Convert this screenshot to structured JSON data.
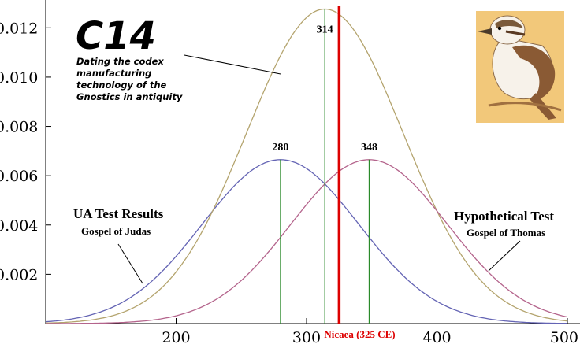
{
  "chart_data": {
    "type": "line",
    "xlim": [
      100,
      500
    ],
    "ylim": [
      0,
      0.013
    ],
    "x_ticks": [
      "200",
      "300",
      "400",
      "500"
    ],
    "y_ticks": [
      "0.002",
      "0.004",
      "0.006",
      "0.008",
      "0.010",
      "0.012"
    ],
    "series": [
      {
        "mean": 280,
        "peak": 0.00665,
        "sd": 60,
        "color": "#6464b4",
        "peak_label": "280"
      },
      {
        "mean": 314,
        "peak": 0.01276,
        "sd": 60,
        "color": "#b4a46e",
        "peak_label": "314"
      },
      {
        "mean": 348,
        "peak": 0.00665,
        "sd": 60,
        "color": "#b4648c",
        "peak_label": "348"
      }
    ],
    "vertical_marker": {
      "x": 325,
      "color": "#dd0000",
      "label": "Nicaea (325 CE)"
    },
    "annotations": {
      "main_title": "C14",
      "description": [
        "Dating the codex",
        "manufacturing",
        "technology of the",
        "Gnostics in antiquity"
      ],
      "left_title": "UA Test Results",
      "left_sub": "Gospel of Judas",
      "right_title": "Hypothetical Test",
      "right_sub": "Gospel of Thomas"
    },
    "colors": {
      "peak_line": "#2a8a2a",
      "axis": "#000000"
    },
    "image": "kookaburra-bird"
  }
}
